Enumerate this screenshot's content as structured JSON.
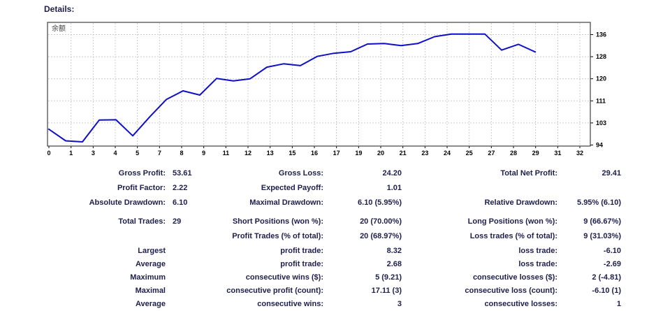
{
  "header": {
    "title": "Details:"
  },
  "chart": {
    "legend": "余额",
    "colors": {
      "line": "#0f0fc8",
      "grid": "#cccccc",
      "border": "#404040",
      "axis_text": "#000000",
      "legend_text": "#404040"
    }
  },
  "chart_data": {
    "type": "line",
    "title": "余额",
    "legend_position": "top-left",
    "grid": true,
    "xlim": [
      0,
      32
    ],
    "ylim": [
      94,
      136
    ],
    "x_tick_labels": [
      "0",
      "1",
      "3",
      "4",
      "5",
      "7",
      "8",
      "9",
      "11",
      "12",
      "13",
      "15",
      "16",
      "17",
      "19",
      "20",
      "21",
      "23",
      "24",
      "25",
      "27",
      "28",
      "29",
      "31",
      "32"
    ],
    "y_tick_labels": [
      "94",
      "103",
      "111",
      "120",
      "128",
      "136"
    ],
    "x": [
      0,
      1,
      2,
      3,
      4,
      5,
      6,
      7,
      8,
      9,
      10,
      11,
      12,
      13,
      14,
      15,
      16,
      17,
      18,
      19,
      20,
      21,
      22,
      23,
      24,
      25,
      26,
      27,
      28,
      29
    ],
    "series": [
      {
        "name": "余额",
        "values": [
          100.0,
          95.6,
          95.2,
          103.5,
          103.6,
          97.5,
          104.6,
          111.3,
          114.6,
          113.0,
          119.3,
          118.4,
          119.2,
          123.6,
          124.9,
          124.2,
          127.7,
          128.9,
          129.5,
          132.4,
          132.6,
          131.8,
          132.6,
          135.2,
          136.2,
          136.2,
          136.2,
          130.1,
          132.3,
          129.4
        ]
      }
    ]
  },
  "table": {
    "rows": [
      {
        "c1l": "Gross Profit:",
        "c1v": "53.61",
        "c2l": "Gross Loss:",
        "c2v": "24.20",
        "c3l": "Total Net Profit:",
        "c3v": "29.41"
      },
      {
        "c1l": "Profit Factor:",
        "c1v": "2.22",
        "c2l": "Expected Payoff:",
        "c2v": "1.01",
        "c3l": "",
        "c3v": ""
      },
      {
        "c1l": "Absolute Drawdown:",
        "c1v": "6.10",
        "c2l": "Maximal Drawdown:",
        "c2v": "6.10 (5.95%)",
        "c3l": "Relative Drawdown:",
        "c3v": "5.95% (6.10)"
      },
      {
        "c1l": "Total Trades:",
        "c1v": "29",
        "c2l": "Short Positions (won %):",
        "c2v": "20 (70.00%)",
        "c3l": "Long Positions (won %):",
        "c3v": "9 (66.67%)"
      },
      {
        "c1l": "",
        "c1v": "",
        "c2l": "Profit Trades (% of total):",
        "c2v": "20 (68.97%)",
        "c3l": "Loss trades (% of total):",
        "c3v": "9 (31.03%)"
      },
      {
        "c1l": "Largest",
        "c1v": "",
        "c2l": "profit trade:",
        "c2v": "8.32",
        "c3l": "loss trade:",
        "c3v": "-6.10"
      },
      {
        "c1l": "Average",
        "c1v": "",
        "c2l": "profit trade:",
        "c2v": "2.68",
        "c3l": "loss trade:",
        "c3v": "-2.69"
      },
      {
        "c1l": "Maximum",
        "c1v": "",
        "c2l": "consecutive wins ($):",
        "c2v": "5 (9.21)",
        "c3l": "consecutive losses ($):",
        "c3v": "2 (-4.81)"
      },
      {
        "c1l": "Maximal",
        "c1v": "",
        "c2l": "consecutive profit (count):",
        "c2v": "17.11 (3)",
        "c3l": "consecutive loss (count):",
        "c3v": "-6.10 (1)"
      },
      {
        "c1l": "Average",
        "c1v": "",
        "c2l": "consecutive wins:",
        "c2v": "3",
        "c3l": "consecutive losses:",
        "c3v": "1"
      }
    ]
  }
}
